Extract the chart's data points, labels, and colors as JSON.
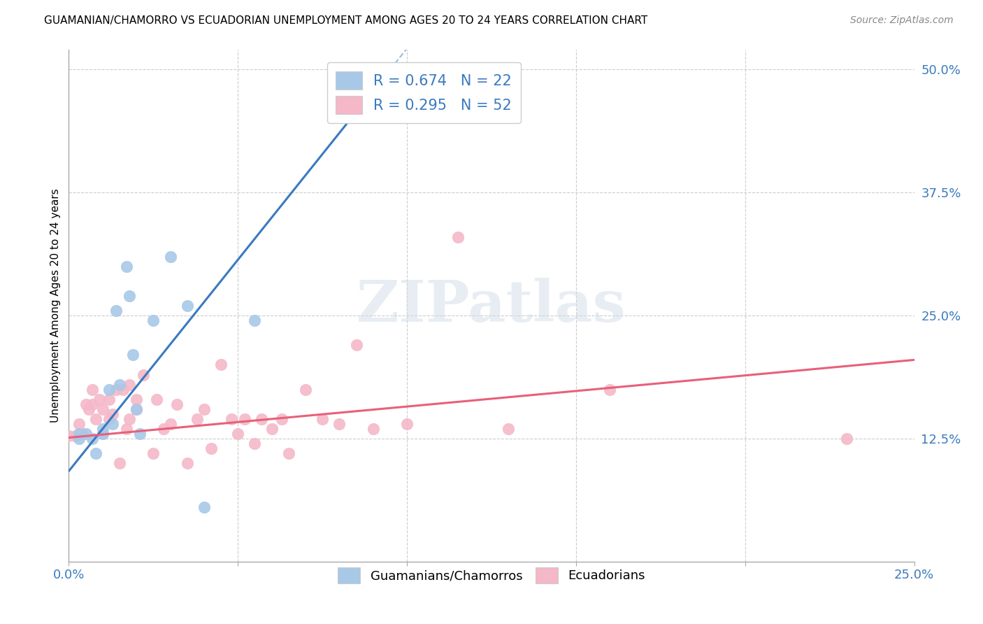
{
  "title": "GUAMANIAN/CHAMORRO VS ECUADORIAN UNEMPLOYMENT AMONG AGES 20 TO 24 YEARS CORRELATION CHART",
  "source": "Source: ZipAtlas.com",
  "ylabel": "Unemployment Among Ages 20 to 24 years",
  "xlim": [
    0.0,
    0.25
  ],
  "ylim": [
    0.0,
    0.52
  ],
  "xticks": [
    0.0,
    0.05,
    0.1,
    0.15,
    0.2,
    0.25
  ],
  "xtick_labels": [
    "0.0%",
    "",
    "",
    "",
    "",
    "25.0%"
  ],
  "ytick_right": [
    0.125,
    0.25,
    0.375,
    0.5
  ],
  "ytick_right_labels": [
    "12.5%",
    "25.0%",
    "37.5%",
    "50.0%"
  ],
  "blue_color": "#a8c8e8",
  "pink_color": "#f4b8c8",
  "blue_line_color": "#3a7abf",
  "pink_line_color": "#e8607a",
  "R_blue": 0.674,
  "N_blue": 22,
  "R_pink": 0.295,
  "N_pink": 52,
  "legend_labels": [
    "Guamanians/Chamorros",
    "Ecuadorians"
  ],
  "watermark": "ZIPatlas",
  "blue_x": [
    0.003,
    0.003,
    0.005,
    0.007,
    0.008,
    0.01,
    0.01,
    0.012,
    0.013,
    0.014,
    0.015,
    0.017,
    0.018,
    0.019,
    0.02,
    0.021,
    0.025,
    0.03,
    0.035,
    0.04,
    0.055,
    0.08
  ],
  "blue_y": [
    0.125,
    0.13,
    0.13,
    0.125,
    0.11,
    0.13,
    0.135,
    0.175,
    0.14,
    0.255,
    0.18,
    0.3,
    0.27,
    0.21,
    0.155,
    0.13,
    0.245,
    0.31,
    0.26,
    0.055,
    0.245,
    0.475
  ],
  "pink_x": [
    0.0,
    0.002,
    0.003,
    0.004,
    0.005,
    0.006,
    0.007,
    0.007,
    0.008,
    0.009,
    0.01,
    0.01,
    0.012,
    0.012,
    0.013,
    0.014,
    0.015,
    0.016,
    0.017,
    0.018,
    0.018,
    0.02,
    0.02,
    0.022,
    0.025,
    0.026,
    0.028,
    0.03,
    0.032,
    0.035,
    0.038,
    0.04,
    0.042,
    0.045,
    0.048,
    0.05,
    0.052,
    0.055,
    0.057,
    0.06,
    0.063,
    0.065,
    0.07,
    0.075,
    0.08,
    0.085,
    0.09,
    0.1,
    0.115,
    0.13,
    0.16,
    0.23
  ],
  "pink_y": [
    0.128,
    0.128,
    0.14,
    0.13,
    0.16,
    0.155,
    0.175,
    0.16,
    0.145,
    0.165,
    0.13,
    0.155,
    0.145,
    0.165,
    0.15,
    0.175,
    0.1,
    0.175,
    0.135,
    0.145,
    0.18,
    0.155,
    0.165,
    0.19,
    0.11,
    0.165,
    0.135,
    0.14,
    0.16,
    0.1,
    0.145,
    0.155,
    0.115,
    0.2,
    0.145,
    0.13,
    0.145,
    0.12,
    0.145,
    0.135,
    0.145,
    0.11,
    0.175,
    0.145,
    0.14,
    0.22,
    0.135,
    0.14,
    0.33,
    0.135,
    0.175,
    0.125
  ],
  "blue_line_x0": 0.0,
  "blue_line_y0": 0.092,
  "blue_line_x1": 0.095,
  "blue_line_y1": 0.5,
  "pink_line_x0": 0.0,
  "pink_line_y0": 0.126,
  "pink_line_x1": 0.25,
  "pink_line_y1": 0.205
}
